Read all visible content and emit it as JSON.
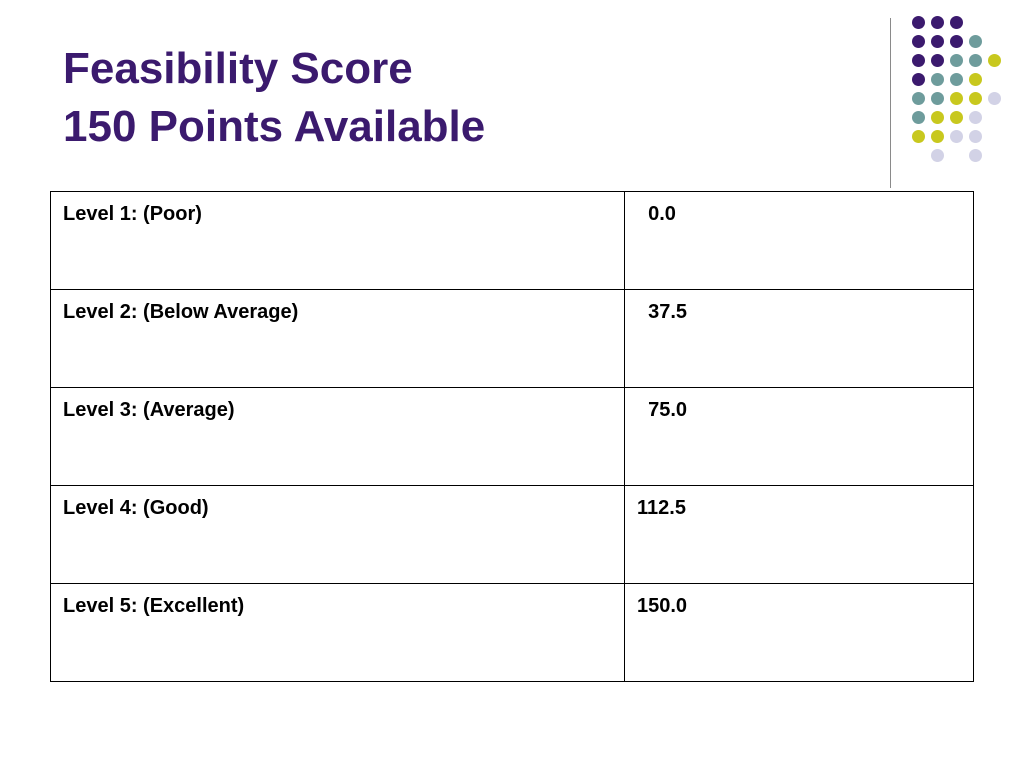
{
  "slide": {
    "title_line1": "Feasibility Score",
    "title_line2": "150 Points Available",
    "title_color": "#3b1a6e",
    "dot_colors": {
      "purple": "#3b1a6e",
      "teal": "#6e9c9c",
      "yellow": "#c8c81e",
      "lavender": "#d2d2e6"
    }
  },
  "table": {
    "rows": [
      {
        "level": "Level 1: (Poor)",
        "score": "  0.0"
      },
      {
        "level": "Level 2: (Below Average)",
        "score": "  37.5"
      },
      {
        "level": "Level 3: (Average)",
        "score": "  75.0"
      },
      {
        "level": "Level 4: (Good)",
        "score": "112.5"
      },
      {
        "level": "Level 5: (Excellent)",
        "score": "150.0"
      }
    ]
  }
}
